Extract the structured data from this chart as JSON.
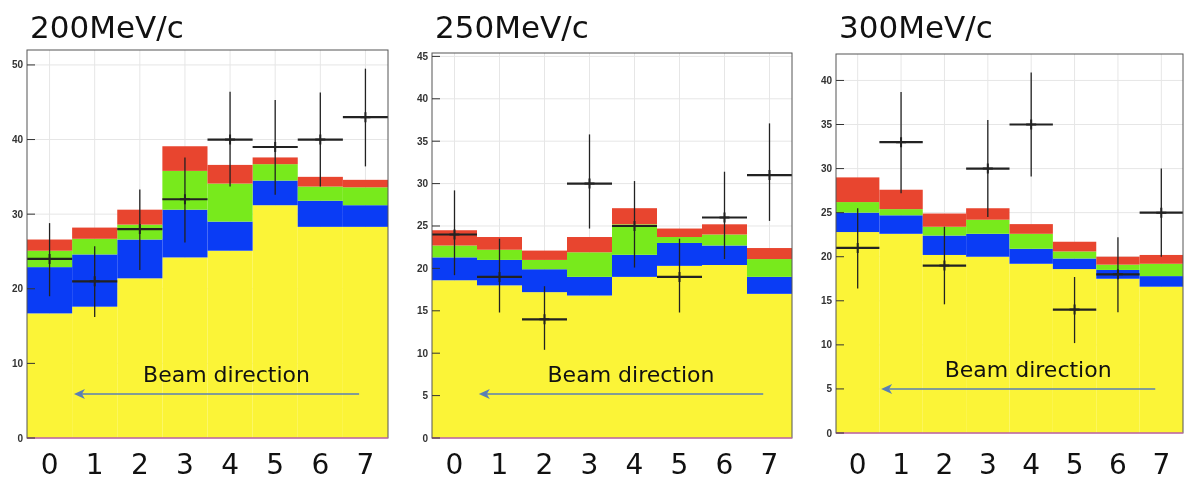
{
  "chart_data": [
    {
      "type": "bar",
      "title": "200MeV/c",
      "stacked": true,
      "grid": true,
      "legend": false,
      "x": [
        0,
        1,
        2,
        3,
        4,
        5,
        6,
        7
      ],
      "xlim": [
        -0.5,
        7.5
      ],
      "xticks": [
        0,
        1,
        2,
        3,
        4,
        5,
        6,
        7
      ],
      "ylim": [
        0,
        52
      ],
      "yticks": [
        0,
        10,
        20,
        30,
        40,
        50
      ],
      "annotations": [
        "Beam direction"
      ],
      "series": [
        {
          "color": "#fbf437",
          "values": [
            16.7,
            17.6,
            21.4,
            24.2,
            25.1,
            31.2,
            28.3,
            28.3
          ]
        },
        {
          "color": "#0a3cf5",
          "values": [
            6.2,
            7.0,
            5.2,
            6.4,
            3.9,
            3.3,
            3.5,
            2.9
          ]
        },
        {
          "color": "#78ea1c",
          "values": [
            2.2,
            2.1,
            2.0,
            5.2,
            5.1,
            2.2,
            1.9,
            2.4
          ]
        },
        {
          "color": "#e8452f",
          "values": [
            1.5,
            1.5,
            2.0,
            3.3,
            2.5,
            0.9,
            1.3,
            1.0
          ]
        },
        {
          "type": "scatter",
          "marker": "cross",
          "color": "#222222",
          "x": [
            0,
            1,
            2,
            3,
            4,
            5,
            6,
            7
          ],
          "values": [
            24,
            21,
            28,
            32,
            40,
            39,
            40,
            43
          ],
          "xerrors": [
            0.5,
            0.5,
            0.5,
            0.5,
            0.5,
            0.5,
            0.5,
            0.5
          ],
          "errors": [
            [
              19,
              28.8
            ],
            [
              16.2,
              25.7
            ],
            [
              22.5,
              33.3
            ],
            [
              26.2,
              37.6
            ],
            [
              33.7,
              46.4
            ],
            [
              32.6,
              45.3
            ],
            [
              33.7,
              46.3
            ],
            [
              36.4,
              49.5
            ]
          ]
        }
      ]
    },
    {
      "type": "bar",
      "title": "250MeV/c",
      "stacked": true,
      "grid": true,
      "legend": false,
      "x": [
        0,
        1,
        2,
        3,
        4,
        5,
        6,
        7
      ],
      "xlim": [
        -0.5,
        7.5
      ],
      "xticks": [
        0,
        1,
        2,
        3,
        4,
        5,
        6,
        7
      ],
      "ylim": [
        0,
        45.4
      ],
      "yticks": [
        0,
        5,
        10,
        15,
        20,
        25,
        30,
        35,
        40,
        45
      ],
      "annotations": [
        "Beam direction"
      ],
      "series": [
        {
          "color": "#fbf437",
          "values": [
            18.6,
            18.0,
            17.2,
            16.8,
            19.0,
            20.3,
            20.4,
            17.0
          ]
        },
        {
          "color": "#0a3cf5",
          "values": [
            2.7,
            3.0,
            2.7,
            2.2,
            2.6,
            2.7,
            2.3,
            2.0
          ]
        },
        {
          "color": "#78ea1c",
          "values": [
            1.4,
            1.2,
            1.1,
            2.9,
            3.6,
            0.7,
            1.3,
            2.1
          ]
        },
        {
          "color": "#e8452f",
          "values": [
            1.8,
            1.5,
            1.1,
            1.8,
            1.9,
            1.0,
            1.2,
            1.3
          ]
        },
        {
          "type": "scatter",
          "marker": "cross",
          "color": "#222222",
          "x": [
            0,
            1,
            2,
            3,
            4,
            5,
            6,
            7
          ],
          "values": [
            24,
            19,
            14,
            30,
            25,
            19,
            26,
            31
          ],
          "xerrors": [
            0.5,
            0.5,
            0.5,
            0.5,
            0.5,
            0.5,
            0.5,
            0.5
          ],
          "errors": [
            [
              19.2,
              29.2
            ],
            [
              14.8,
              23.5
            ],
            [
              10.4,
              17.9
            ],
            [
              24.7,
              35.8
            ],
            [
              20.1,
              30.3
            ],
            [
              14.8,
              23.5
            ],
            [
              21.1,
              31.4
            ],
            [
              25.6,
              37.1
            ]
          ]
        }
      ]
    },
    {
      "type": "bar",
      "title": "300MeV/c",
      "stacked": true,
      "grid": true,
      "legend": false,
      "x": [
        0,
        1,
        2,
        3,
        4,
        5,
        6,
        7
      ],
      "xlim": [
        -0.5,
        7.5
      ],
      "xticks": [
        0,
        1,
        2,
        3,
        4,
        5,
        6,
        7
      ],
      "ylim": [
        0,
        43
      ],
      "yticks": [
        0,
        5,
        10,
        15,
        20,
        25,
        30,
        35,
        40
      ],
      "annotations": [
        "Beam direction"
      ],
      "series": [
        {
          "color": "#fbf437",
          "values": [
            22.8,
            22.6,
            20.2,
            20.0,
            19.2,
            18.6,
            17.5,
            16.6
          ]
        },
        {
          "color": "#0a3cf5",
          "values": [
            2.2,
            2.1,
            2.2,
            2.6,
            1.7,
            1.2,
            1.0,
            1.2
          ]
        },
        {
          "color": "#78ea1c",
          "values": [
            1.2,
            0.7,
            1.0,
            1.6,
            1.7,
            0.8,
            0.6,
            1.4
          ]
        },
        {
          "color": "#e8452f",
          "values": [
            2.8,
            2.2,
            1.5,
            1.3,
            1.1,
            1.1,
            0.9,
            1.0
          ]
        },
        {
          "type": "scatter",
          "marker": "cross",
          "color": "#222222",
          "x": [
            0,
            1,
            2,
            3,
            4,
            5,
            6,
            7
          ],
          "values": [
            21,
            33,
            19,
            30,
            35,
            14,
            18,
            25
          ],
          "xerrors": [
            0.5,
            0.5,
            0.5,
            0.5,
            0.5,
            0.5,
            0.5,
            0.5
          ],
          "errors": [
            [
              16.4,
              25.5
            ],
            [
              27.2,
              38.7
            ],
            [
              14.6,
              23.4
            ],
            [
              24.5,
              35.5
            ],
            [
              29.1,
              40.9
            ],
            [
              10.2,
              17.7
            ],
            [
              13.7,
              22.2
            ],
            [
              20.0,
              30.0
            ]
          ]
        }
      ]
    }
  ]
}
